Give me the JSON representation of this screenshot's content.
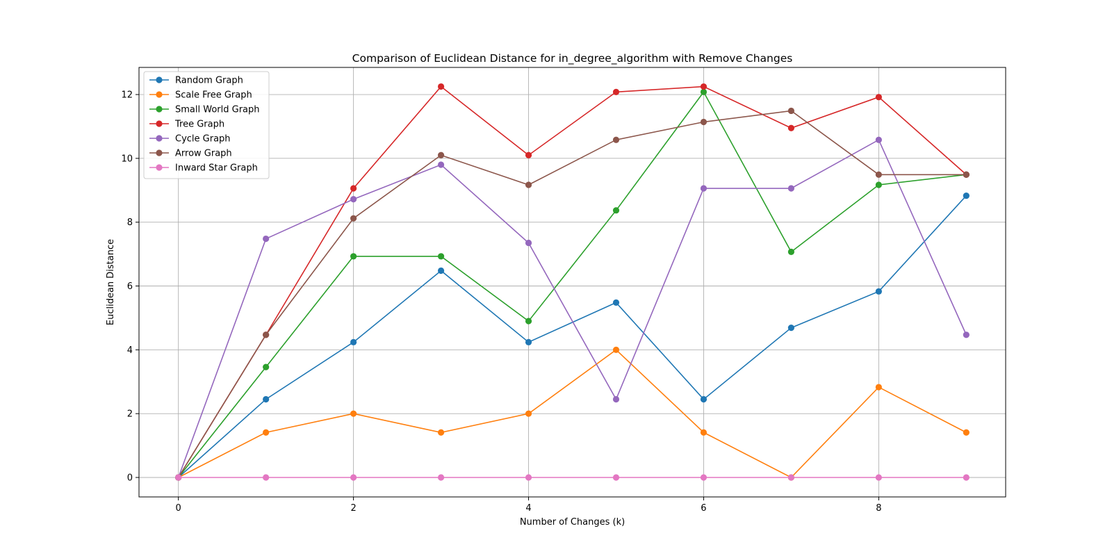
{
  "chart_data": {
    "type": "line",
    "title": "Comparison of Euclidean Distance for in_degree_algorithm with Remove Changes",
    "xlabel": "Number of Changes (k)",
    "ylabel": "Euclidean Distance",
    "xlim": [
      -0.45,
      9.45
    ],
    "ylim": [
      -0.61,
      12.85
    ],
    "xticks": [
      0,
      2,
      4,
      6,
      8
    ],
    "yticks": [
      0,
      2,
      4,
      6,
      8,
      10,
      12
    ],
    "grid": true,
    "legend_position": "top-left",
    "x": [
      0,
      1,
      2,
      3,
      4,
      5,
      6,
      7,
      8,
      9
    ],
    "series": [
      {
        "name": "Random Graph",
        "color": "#1f77b4",
        "values": [
          0,
          2.45,
          4.24,
          6.48,
          4.24,
          5.48,
          2.45,
          4.69,
          5.83,
          8.83
        ]
      },
      {
        "name": "Scale Free Graph",
        "color": "#ff7f0e",
        "values": [
          0,
          1.41,
          2.0,
          1.41,
          2.0,
          4.0,
          1.41,
          0,
          2.83,
          1.41
        ]
      },
      {
        "name": "Small World Graph",
        "color": "#2ca02c",
        "values": [
          0,
          3.46,
          6.93,
          6.93,
          4.9,
          8.37,
          12.08,
          7.07,
          9.17,
          9.49
        ]
      },
      {
        "name": "Tree Graph",
        "color": "#d62728",
        "values": [
          0,
          4.47,
          9.06,
          12.25,
          10.1,
          12.08,
          12.25,
          10.95,
          11.92,
          9.49
        ]
      },
      {
        "name": "Cycle Graph",
        "color": "#9467bd",
        "values": [
          0,
          7.48,
          8.72,
          9.8,
          7.35,
          2.45,
          9.06,
          9.06,
          10.58,
          4.47
        ]
      },
      {
        "name": "Arrow Graph",
        "color": "#8c564b",
        "values": [
          0,
          4.47,
          8.12,
          10.1,
          9.17,
          10.58,
          11.14,
          11.49,
          9.49,
          9.49
        ]
      },
      {
        "name": "Inward Star Graph",
        "color": "#e377c2",
        "values": [
          0,
          0,
          0,
          0,
          0,
          0,
          0,
          0,
          0,
          0
        ]
      }
    ]
  }
}
